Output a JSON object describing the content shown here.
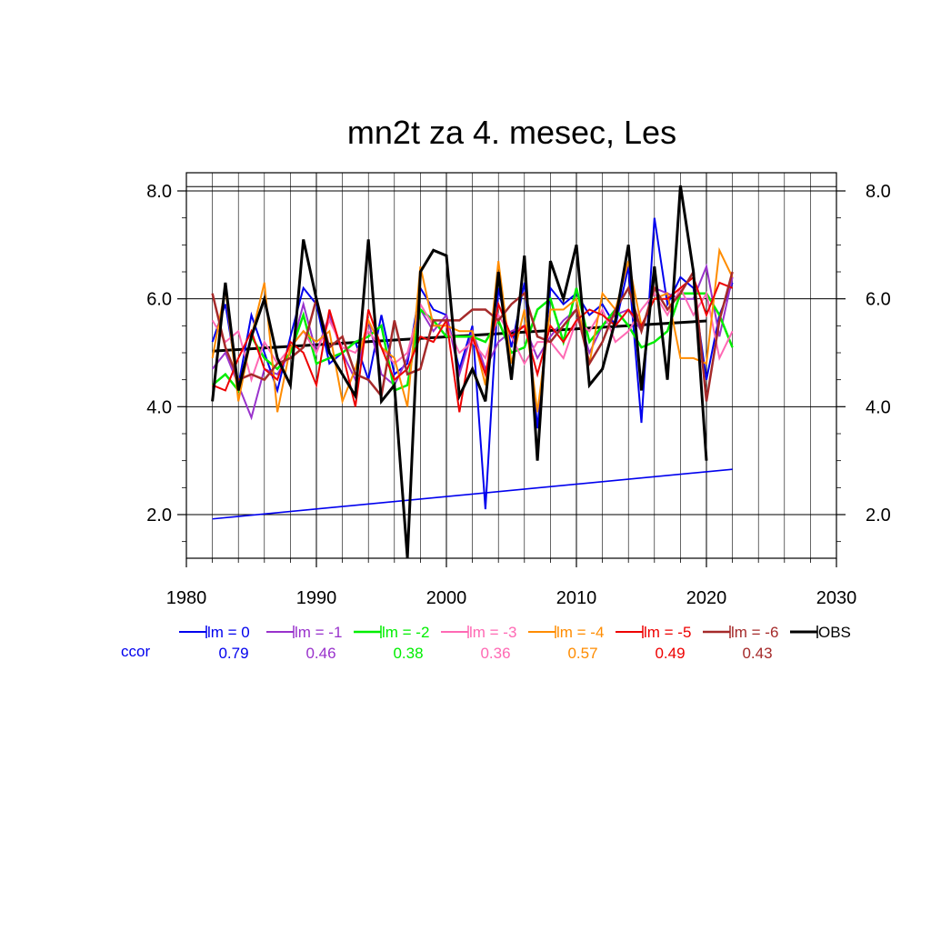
{
  "chart_data": {
    "type": "line",
    "title": "mn2t za 4. mesec, Les",
    "xlabel": "",
    "ylabel": "",
    "xlim": [
      1980,
      2030
    ],
    "ylim": [
      1.2,
      8.15
    ],
    "x_ticks": [
      1980,
      1990,
      2000,
      2010,
      2020,
      2030
    ],
    "x_tick_labels": [
      "1980",
      "1990",
      "2000",
      "2010",
      "2020",
      "2030"
    ],
    "y_ticks": [
      2.0,
      4.0,
      6.0,
      8.0
    ],
    "y_tick_labels": [
      "2.0",
      "4.0",
      "6.0",
      "8.0"
    ],
    "grid": true,
    "legend_position": "bottom",
    "ccor_label": "ccor",
    "series": [
      {
        "name": "lm = 0",
        "color": "#0000ee",
        "width": 2,
        "ccor": "0.79",
        "x": [
          1982,
          1983,
          1984,
          1985,
          1986,
          1987,
          1988,
          1989,
          1990,
          1991,
          1992,
          1993,
          1994,
          1995,
          1996,
          1997,
          1998,
          1999,
          2000,
          2001,
          2002,
          2003,
          2004,
          2005,
          2006,
          2007,
          2008,
          2009,
          2010,
          2011,
          2012,
          2013,
          2014,
          2015,
          2016,
          2017,
          2018,
          2019,
          2020,
          2021,
          2022
        ],
        "y": [
          5.2,
          5.9,
          4.4,
          5.7,
          5.0,
          4.3,
          5.3,
          6.2,
          5.9,
          4.8,
          5.0,
          5.2,
          4.5,
          5.7,
          4.6,
          4.8,
          6.2,
          5.8,
          5.7,
          4.7,
          5.5,
          2.1,
          6.2,
          5.1,
          6.3,
          3.6,
          6.2,
          5.9,
          6.1,
          5.7,
          5.9,
          5.5,
          6.6,
          3.7,
          7.5,
          5.9,
          6.4,
          6.2,
          4.5,
          5.7,
          6.3
        ]
      },
      {
        "name": "lm = -1",
        "color": "#9932cc",
        "width": 2,
        "ccor": "0.46",
        "x": [
          1982,
          1983,
          1984,
          1985,
          1986,
          1987,
          1988,
          1989,
          1990,
          1991,
          1992,
          1993,
          1994,
          1995,
          1996,
          1997,
          1998,
          1999,
          2000,
          2001,
          2002,
          2003,
          2004,
          2005,
          2006,
          2007,
          2008,
          2009,
          2010,
          2011,
          2012,
          2013,
          2014,
          2015,
          2016,
          2017,
          2018,
          2019,
          2020,
          2021,
          2022
        ],
        "y": [
          4.7,
          5.0,
          4.4,
          3.8,
          4.7,
          4.6,
          5.0,
          5.9,
          5.0,
          5.7,
          5.0,
          4.5,
          5.6,
          4.6,
          4.4,
          4.9,
          5.8,
          5.4,
          5.7,
          4.6,
          5.4,
          4.7,
          5.2,
          5.4,
          5.5,
          4.9,
          5.3,
          5.6,
          5.8,
          5.0,
          5.5,
          5.7,
          5.8,
          5.4,
          6.2,
          6.1,
          6.0,
          6.0,
          6.6,
          5.3,
          6.4
        ]
      },
      {
        "name": "lm = -2",
        "color": "#00ee00",
        "width": 2.5,
        "ccor": "0.38",
        "x": [
          1982,
          1983,
          1984,
          1985,
          1986,
          1987,
          1988,
          1989,
          1990,
          1991,
          1992,
          1993,
          1994,
          1995,
          1996,
          1997,
          1998,
          1999,
          2000,
          2001,
          2002,
          2003,
          2004,
          2005,
          2006,
          2007,
          2008,
          2009,
          2010,
          2011,
          2012,
          2013,
          2014,
          2015,
          2016,
          2017,
          2018,
          2019,
          2020,
          2021,
          2022
        ],
        "y": [
          4.4,
          4.6,
          4.3,
          5.3,
          4.9,
          4.7,
          5.0,
          5.7,
          4.8,
          4.9,
          5.0,
          5.2,
          5.3,
          5.5,
          4.3,
          4.4,
          5.8,
          5.6,
          5.3,
          5.3,
          5.3,
          5.2,
          5.6,
          5.0,
          5.1,
          5.8,
          6.0,
          5.2,
          6.2,
          5.2,
          5.5,
          5.8,
          5.5,
          5.1,
          5.2,
          5.4,
          6.1,
          6.1,
          6.1,
          5.7,
          5.1
        ]
      },
      {
        "name": "lm = -3",
        "color": "#ff69b4",
        "width": 2,
        "ccor": "0.36",
        "x": [
          1982,
          1983,
          1984,
          1985,
          1986,
          1987,
          1988,
          1989,
          1990,
          1991,
          1992,
          1993,
          1994,
          1995,
          1996,
          1997,
          1998,
          1999,
          2000,
          2001,
          2002,
          2003,
          2004,
          2005,
          2006,
          2007,
          2008,
          2009,
          2010,
          2011,
          2012,
          2013,
          2014,
          2015,
          2016,
          2017,
          2018,
          2019,
          2020,
          2021,
          2022
        ],
        "y": [
          5.6,
          5.2,
          5.4,
          4.5,
          5.2,
          4.8,
          5.1,
          5.4,
          5.0,
          5.6,
          5.1,
          5.0,
          5.4,
          5.1,
          4.8,
          5.0,
          5.9,
          5.5,
          5.5,
          5.0,
          5.2,
          4.9,
          5.7,
          5.3,
          4.8,
          5.2,
          5.2,
          4.9,
          5.6,
          5.4,
          5.8,
          5.2,
          5.4,
          5.8,
          6.1,
          5.7,
          6.2,
          5.7,
          6.1,
          4.9,
          5.4
        ]
      },
      {
        "name": "lm = -4",
        "color": "#ff8c00",
        "width": 2,
        "ccor": "0.57",
        "x": [
          1982,
          1983,
          1984,
          1985,
          1986,
          1987,
          1988,
          1989,
          1990,
          1991,
          1992,
          1993,
          1994,
          1995,
          1996,
          1997,
          1998,
          1999,
          2000,
          2001,
          2002,
          2003,
          2004,
          2005,
          2006,
          2007,
          2008,
          2009,
          2010,
          2011,
          2012,
          2013,
          2014,
          2015,
          2016,
          2017,
          2018,
          2019,
          2020,
          2021,
          2022
        ],
        "y": [
          4.9,
          6.2,
          4.1,
          5.3,
          6.3,
          3.9,
          5.1,
          5.4,
          5.2,
          5.4,
          4.1,
          4.7,
          5.6,
          5.1,
          4.9,
          4.0,
          6.6,
          5.5,
          5.5,
          5.4,
          5.4,
          4.4,
          6.7,
          4.8,
          5.8,
          3.9,
          5.8,
          5.8,
          6.0,
          4.8,
          6.1,
          5.8,
          6.7,
          5.5,
          6.0,
          6.1,
          4.9,
          4.9,
          4.8,
          6.9,
          6.4
        ]
      },
      {
        "name": "lm = -5",
        "color": "#ee0000",
        "width": 2,
        "ccor": "0.49",
        "x": [
          1982,
          1983,
          1984,
          1985,
          1986,
          1987,
          1988,
          1989,
          1990,
          1991,
          1992,
          1993,
          1994,
          1995,
          1996,
          1997,
          1998,
          1999,
          2000,
          2001,
          2002,
          2003,
          2004,
          2005,
          2006,
          2007,
          2008,
          2009,
          2010,
          2011,
          2012,
          2013,
          2014,
          2015,
          2016,
          2017,
          2018,
          2019,
          2020,
          2021,
          2022
        ],
        "y": [
          4.4,
          4.3,
          4.9,
          5.4,
          4.7,
          4.5,
          5.2,
          5.0,
          4.4,
          5.8,
          5.0,
          4.0,
          5.8,
          5.1,
          4.5,
          4.7,
          5.3,
          5.2,
          5.6,
          3.9,
          5.3,
          4.6,
          5.9,
          5.3,
          5.5,
          4.6,
          5.5,
          5.2,
          5.6,
          5.8,
          5.7,
          5.5,
          5.8,
          5.5,
          6.0,
          6.0,
          6.2,
          6.4,
          5.7,
          6.3,
          6.2
        ]
      },
      {
        "name": "lm = -6",
        "color": "#a52a2a",
        "width": 2.5,
        "ccor": "0.43",
        "x": [
          1982,
          1983,
          1984,
          1985,
          1986,
          1987,
          1988,
          1989,
          1990,
          1991,
          1992,
          1993,
          1994,
          1995,
          1996,
          1997,
          1998,
          1999,
          2000,
          2001,
          2002,
          2003,
          2004,
          2005,
          2006,
          2007,
          2008,
          2009,
          2010,
          2011,
          2012,
          2013,
          2014,
          2015,
          2016,
          2017,
          2018,
          2019,
          2020,
          2021,
          2022
        ],
        "y": [
          6.1,
          5.1,
          4.5,
          4.6,
          4.5,
          4.8,
          4.9,
          5.1,
          6.0,
          5.1,
          5.3,
          4.6,
          4.5,
          4.2,
          5.6,
          4.6,
          4.7,
          5.6,
          5.6,
          5.6,
          5.8,
          5.8,
          5.6,
          5.9,
          6.1,
          5.3,
          5.2,
          5.5,
          5.8,
          4.8,
          5.2,
          5.8,
          6.2,
          5.4,
          6.2,
          5.8,
          6.1,
          6.5,
          4.1,
          5.6,
          6.5
        ]
      },
      {
        "name": "OBS",
        "color": "#000000",
        "width": 3,
        "ccor": "",
        "x": [
          1982,
          1983,
          1984,
          1985,
          1986,
          1987,
          1988,
          1989,
          1990,
          1991,
          1992,
          1993,
          1994,
          1995,
          1996,
          1997,
          1998,
          1999,
          2000,
          2001,
          2002,
          2003,
          2004,
          2005,
          2006,
          2007,
          2008,
          2009,
          2010,
          2011,
          2012,
          2013,
          2014,
          2015,
          2016,
          2017,
          2018,
          2019,
          2020
        ],
        "y": [
          4.1,
          6.3,
          4.3,
          5.3,
          6.0,
          4.9,
          4.4,
          7.1,
          6.0,
          5.0,
          4.6,
          4.2,
          7.1,
          4.1,
          4.4,
          1.2,
          6.5,
          6.9,
          6.8,
          4.2,
          4.7,
          4.1,
          6.5,
          4.5,
          6.8,
          3.0,
          6.7,
          6.0,
          7.0,
          4.4,
          4.7,
          5.6,
          7.0,
          4.3,
          6.6,
          4.5,
          8.1,
          6.5,
          3.0
        ]
      }
    ],
    "trend_lines": [
      {
        "name": "OBS trend",
        "color": "#000000",
        "width": 3,
        "x": [
          1982,
          2020
        ],
        "y": [
          5.03,
          5.59
        ]
      },
      {
        "name": "lm = 0 trend",
        "color": "#0000ee",
        "width": 1.6,
        "x": [
          1982,
          2022
        ],
        "y": [
          1.92,
          2.84
        ]
      }
    ]
  }
}
